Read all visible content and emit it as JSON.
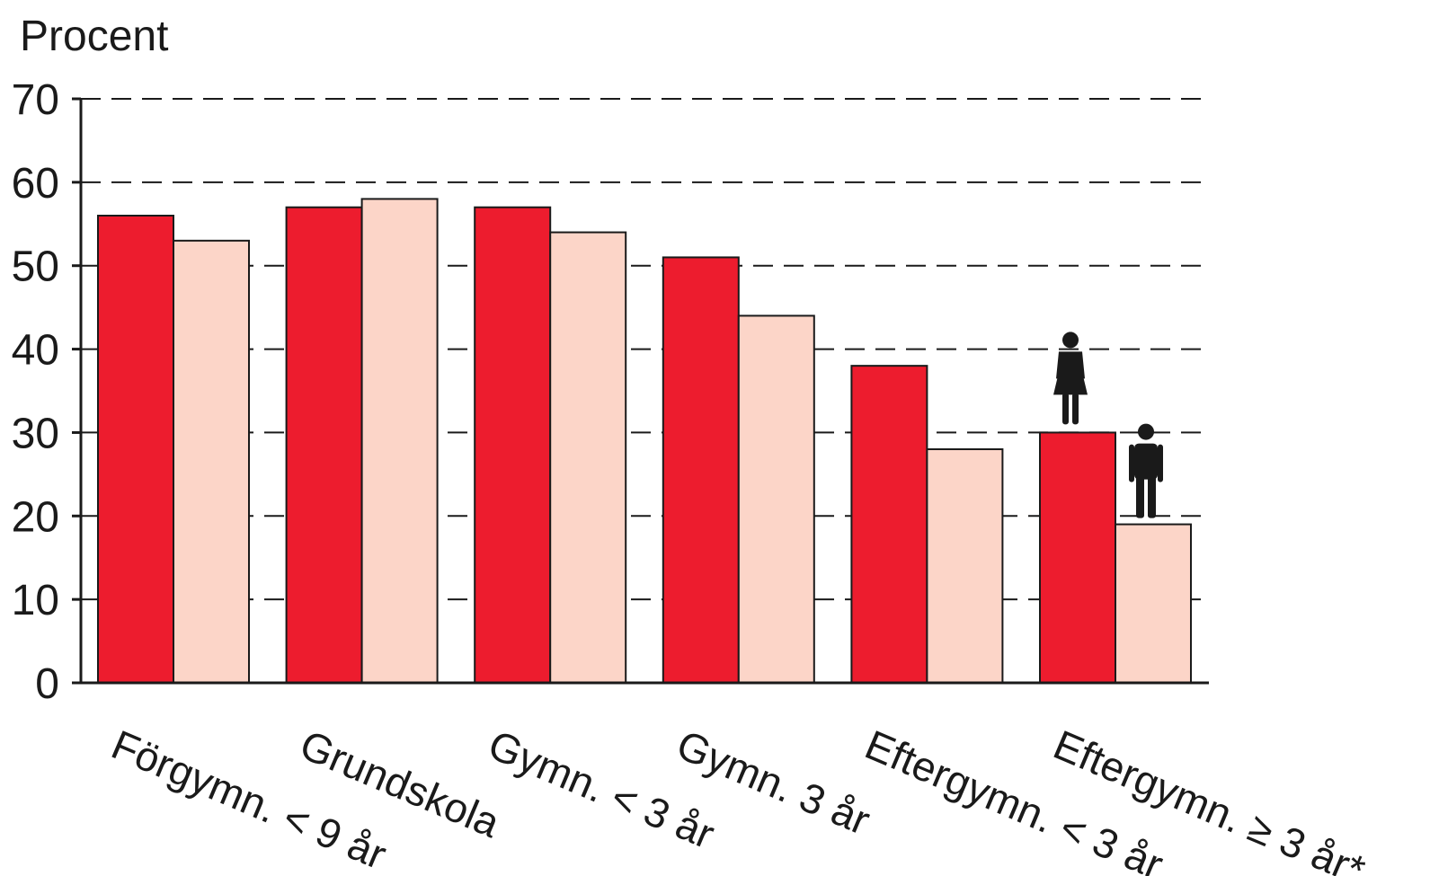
{
  "chart_data": {
    "type": "bar",
    "ylabel": "Procent",
    "ylim": [
      0,
      70
    ],
    "yticks": [
      0,
      10,
      20,
      30,
      40,
      50,
      60,
      70
    ],
    "grid": true,
    "categories": [
      "Förgymn. < 9 år",
      "Grundskola",
      "Gymn. < 3 år",
      "Gymn. 3 år",
      "Eftergymn. < 3 år",
      "Eftergymn. ≥ 3 år*"
    ],
    "series": [
      {
        "key": "female",
        "color": "#ed1c2e",
        "icon": "female-icon",
        "values": [
          56,
          57,
          57,
          51,
          38,
          30
        ]
      },
      {
        "key": "male",
        "color": "#fcd5c8",
        "icon": "male-icon",
        "values": [
          53,
          58,
          54,
          44,
          28,
          19
        ]
      }
    ],
    "legend": "icons above last category"
  }
}
